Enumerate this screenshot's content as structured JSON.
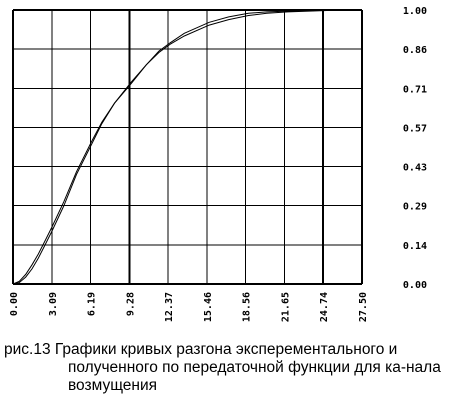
{
  "chart_data": {
    "type": "line",
    "title": "",
    "xlabel": "",
    "ylabel": "",
    "xlim": [
      0,
      27.5
    ],
    "ylim": [
      0,
      1.0
    ],
    "x_ticks": [
      "0.00",
      "3.09",
      "6.19",
      "9.28",
      "12.37",
      "15.46",
      "18.56",
      "21.65",
      "24.74",
      "27.50"
    ],
    "y_ticks": [
      "0.00",
      "0.14",
      "0.29",
      "0.43",
      "0.57",
      "0.71",
      "0.86",
      "1.00"
    ],
    "grid": true,
    "legend": "none",
    "series": [
      {
        "x": [
          0,
          0.5,
          1.0,
          1.5,
          2.0,
          2.5,
          3.09,
          4.0,
          5.0,
          6.19,
          7.0,
          8.0,
          9.28,
          10.5,
          11.5,
          12.37,
          13.5,
          15.46,
          17.0,
          18.56,
          20.0,
          21.65,
          24.74,
          27.5
        ],
        "y": [
          0,
          0.01,
          0.035,
          0.07,
          0.11,
          0.155,
          0.21,
          0.3,
          0.41,
          0.52,
          0.59,
          0.66,
          0.73,
          0.8,
          0.85,
          0.88,
          0.915,
          0.955,
          0.975,
          0.988,
          0.993,
          0.996,
          0.999,
          1.0
        ]
      },
      {
        "x": [
          0,
          0.5,
          1.0,
          1.5,
          2.0,
          2.5,
          3.09,
          4.0,
          5.0,
          6.19,
          7.0,
          8.0,
          9.28,
          10.5,
          11.5,
          12.37,
          13.5,
          15.46,
          17.0,
          18.56,
          20.0,
          21.65,
          24.74,
          27.5
        ],
        "y": [
          0,
          0.005,
          0.025,
          0.055,
          0.095,
          0.14,
          0.195,
          0.285,
          0.4,
          0.51,
          0.585,
          0.66,
          0.735,
          0.8,
          0.845,
          0.875,
          0.905,
          0.945,
          0.965,
          0.98,
          0.988,
          0.993,
          0.998,
          1.0
        ]
      }
    ],
    "colors": {
      "line": "#000000",
      "grid": "#000000"
    }
  },
  "caption": {
    "line1": "рис.13 Графики кривых разгона эксперементального и",
    "rest": "полученного по передаточной функции для ка-нала возмущения"
  }
}
